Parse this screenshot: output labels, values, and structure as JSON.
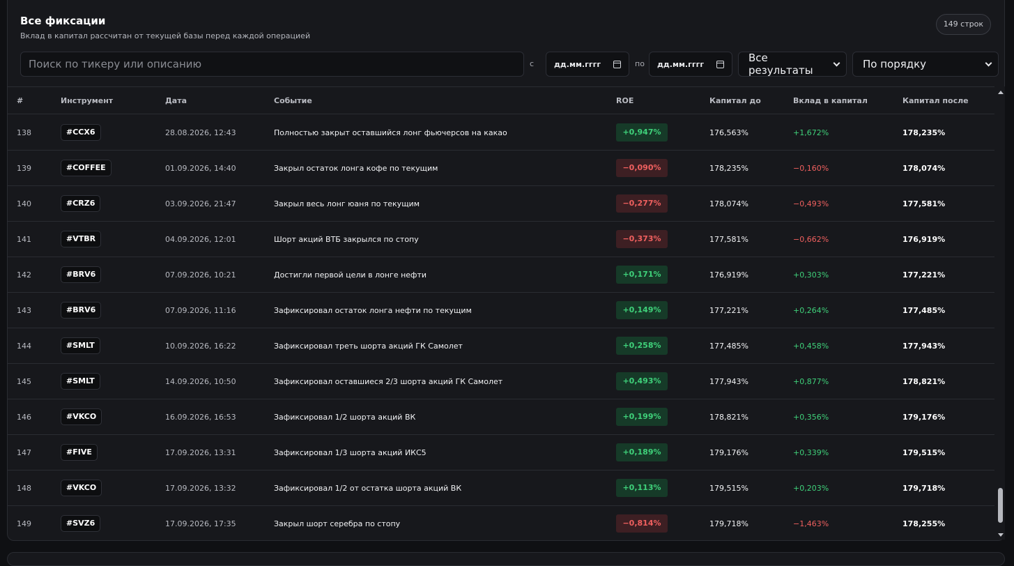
{
  "header": {
    "title": "Все фиксации",
    "subtitle": "Вклад в капитал рассчитан от текущей базы перед каждой операцией",
    "row_count": "149 строк"
  },
  "filters": {
    "search_placeholder": "Поиск по тикеру или описанию",
    "from_label": "с",
    "to_label": "по",
    "date_from": "дд.мм.гггг",
    "date_to": "дд.мм.гггг",
    "result_filter": "Все результаты",
    "sort": "По порядку"
  },
  "table": {
    "columns": [
      "#",
      "Инструмент",
      "Дата",
      "Событие",
      "ROE",
      "Капитал до",
      "Вклад в капитал",
      "Капитал после"
    ],
    "rows": [
      {
        "num": "138",
        "ticker": "#CCX6",
        "date": "28.08.2026, 12:43",
        "event": "Полностью закрыт оставшийся лонг фьючерсов на какао",
        "roe": "+0,947%",
        "roe_sign": "pos",
        "before": "176,563%",
        "contrib": "+1,672%",
        "after": "178,235%"
      },
      {
        "num": "139",
        "ticker": "#COFFEE",
        "date": "01.09.2026, 14:40",
        "event": "Закрыл остаток лонга кофе по текущим",
        "roe": "−0,090%",
        "roe_sign": "neg",
        "before": "178,235%",
        "contrib": "−0,160%",
        "after": "178,074%"
      },
      {
        "num": "140",
        "ticker": "#CRZ6",
        "date": "03.09.2026, 21:47",
        "event": "Закрыл весь лонг юаня по текущим",
        "roe": "−0,277%",
        "roe_sign": "neg",
        "before": "178,074%",
        "contrib": "−0,493%",
        "after": "177,581%"
      },
      {
        "num": "141",
        "ticker": "#VTBR",
        "date": "04.09.2026, 12:01",
        "event": "Шорт акций ВТБ закрылся по стопу",
        "roe": "−0,373%",
        "roe_sign": "neg",
        "before": "177,581%",
        "contrib": "−0,662%",
        "after": "176,919%"
      },
      {
        "num": "142",
        "ticker": "#BRV6",
        "date": "07.09.2026, 10:21",
        "event": "Достигли первой цели в лонге нефти",
        "roe": "+0,171%",
        "roe_sign": "pos",
        "before": "176,919%",
        "contrib": "+0,303%",
        "after": "177,221%"
      },
      {
        "num": "143",
        "ticker": "#BRV6",
        "date": "07.09.2026, 11:16",
        "event": "Зафиксировал остаток лонга нефти по текущим",
        "roe": "+0,149%",
        "roe_sign": "pos",
        "before": "177,221%",
        "contrib": "+0,264%",
        "after": "177,485%"
      },
      {
        "num": "144",
        "ticker": "#SMLT",
        "date": "10.09.2026, 16:22",
        "event": "Зафиксировал треть шорта акций ГК Самолет",
        "roe": "+0,258%",
        "roe_sign": "pos",
        "before": "177,485%",
        "contrib": "+0,458%",
        "after": "177,943%"
      },
      {
        "num": "145",
        "ticker": "#SMLT",
        "date": "14.09.2026, 10:50",
        "event": "Зафиксировал оставшиеся 2/3 шорта акций ГК Самолет",
        "roe": "+0,493%",
        "roe_sign": "pos",
        "before": "177,943%",
        "contrib": "+0,877%",
        "after": "178,821%"
      },
      {
        "num": "146",
        "ticker": "#VKCO",
        "date": "16.09.2026, 16:53",
        "event": "Зафиксировал 1/2 шорта акций ВК",
        "roe": "+0,199%",
        "roe_sign": "pos",
        "before": "178,821%",
        "contrib": "+0,356%",
        "after": "179,176%"
      },
      {
        "num": "147",
        "ticker": "#FIVE",
        "date": "17.09.2026, 13:31",
        "event": "Зафиксировал 1/3 шорта акций ИКС5",
        "roe": "+0,189%",
        "roe_sign": "pos",
        "before": "179,176%",
        "contrib": "+0,339%",
        "after": "179,515%"
      },
      {
        "num": "148",
        "ticker": "#VKCO",
        "date": "17.09.2026, 13:32",
        "event": "Зафиксировал 1/2 от остатка шорта акций ВК",
        "roe": "+0,113%",
        "roe_sign": "pos",
        "before": "179,515%",
        "contrib": "+0,203%",
        "after": "179,718%"
      },
      {
        "num": "149",
        "ticker": "#SVZ6",
        "date": "17.09.2026, 17:35",
        "event": "Закрыл шорт серебра по стопу",
        "roe": "−0,814%",
        "roe_sign": "neg",
        "before": "179,718%",
        "contrib": "−1,463%",
        "after": "178,255%"
      }
    ]
  },
  "colors": {
    "positive": "#3fd17a",
    "negative": "#f0605f",
    "background": "#17181c"
  },
  "scrollbar": {
    "position_fraction": 0.97
  }
}
